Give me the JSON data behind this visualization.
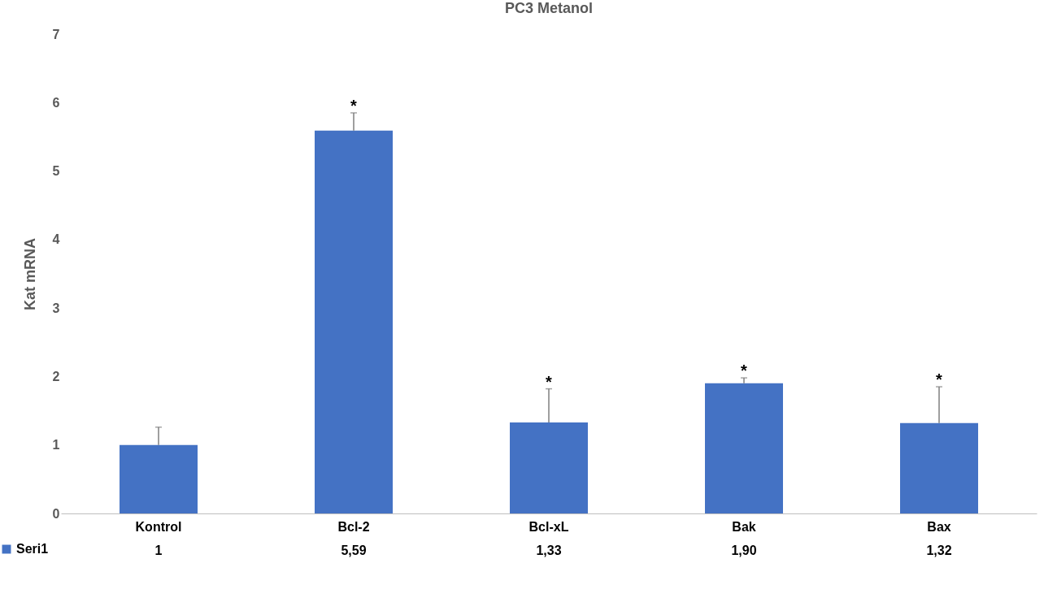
{
  "chart_data": {
    "type": "bar",
    "title": "PC3 Metanol",
    "ylabel": "Kat mRNA",
    "categories": [
      "Kontrol",
      "Bcl-2",
      "Bcl-xL",
      "Bak",
      "Bax"
    ],
    "series": [
      {
        "name": "Seri1",
        "color": "#4472c4",
        "values": [
          1,
          5.59,
          1.33,
          1.9,
          1.32
        ],
        "errors": [
          [
            1,
            1.26
          ],
          [
            5.59,
            5.85
          ],
          [
            1.33,
            1.82
          ],
          [
            1.9,
            1.98
          ],
          [
            1.32,
            1.85
          ]
        ],
        "value_labels": [
          "1",
          "5,59",
          "1,33",
          "1,90",
          "1,32"
        ]
      }
    ],
    "annotations": [
      {
        "text": "*",
        "x": "Bcl-2",
        "y": 5.85
      },
      {
        "text": "*",
        "x": "Bcl-xL",
        "y": 1.82
      },
      {
        "text": "*",
        "x": "Bak",
        "y": 1.98
      },
      {
        "text": "*",
        "x": "Bax",
        "y": 1.85
      }
    ],
    "ylim": [
      0,
      7
    ],
    "yticks": [
      0,
      1,
      2,
      3,
      4,
      5,
      6,
      7
    ],
    "legend": "bottom"
  }
}
